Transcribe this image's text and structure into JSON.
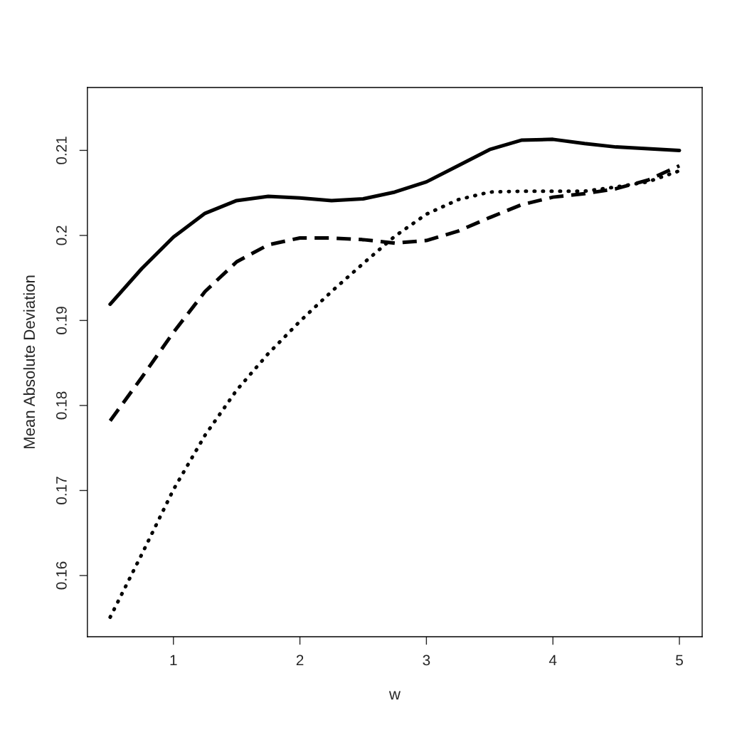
{
  "chart_data": {
    "type": "line",
    "xlabel": "w",
    "ylabel": "Mean Absolute Deviation",
    "x": [
      0.5,
      0.75,
      1,
      1.25,
      1.5,
      1.75,
      2,
      2.25,
      2.5,
      2.75,
      3,
      3.25,
      3.5,
      3.75,
      4,
      4.25,
      4.5,
      4.75,
      5
    ],
    "series": [
      {
        "color": "#000000",
        "line_style": "solid",
        "values": [
          0.1919,
          0.1961,
          0.1998,
          0.2026,
          0.2041,
          0.2046,
          0.2044,
          0.2041,
          0.2043,
          0.2051,
          0.2063,
          0.2082,
          0.2101,
          0.2112,
          0.2113,
          0.2108,
          0.2104,
          0.2102,
          0.21
        ]
      },
      {
        "color": "#000000",
        "line_style": "dashed",
        "values": [
          0.1782,
          0.1833,
          0.1886,
          0.1934,
          0.1969,
          0.1989,
          0.1997,
          0.1997,
          0.1995,
          0.1991,
          0.1994,
          0.2005,
          0.2021,
          0.2036,
          0.2045,
          0.2049,
          0.2055,
          0.2065,
          0.2082
        ]
      },
      {
        "color": "#000000",
        "line_style": "dotted",
        "values": [
          0.1551,
          0.1625,
          0.1701,
          0.1765,
          0.1818,
          0.1861,
          0.1899,
          0.1934,
          0.1967,
          0.1999,
          0.2025,
          0.2042,
          0.2051,
          0.2052,
          0.2052,
          0.2052,
          0.2057,
          0.2063,
          0.2076
        ]
      }
    ],
    "xlim": [
      0.32,
      5.18
    ],
    "ylim": [
      0.1528,
      0.2174
    ],
    "xticks": [
      1,
      2,
      3,
      4,
      5
    ],
    "yticks": [
      0.16,
      0.17,
      0.18,
      0.19,
      0.2,
      0.21
    ],
    "grid": false
  }
}
